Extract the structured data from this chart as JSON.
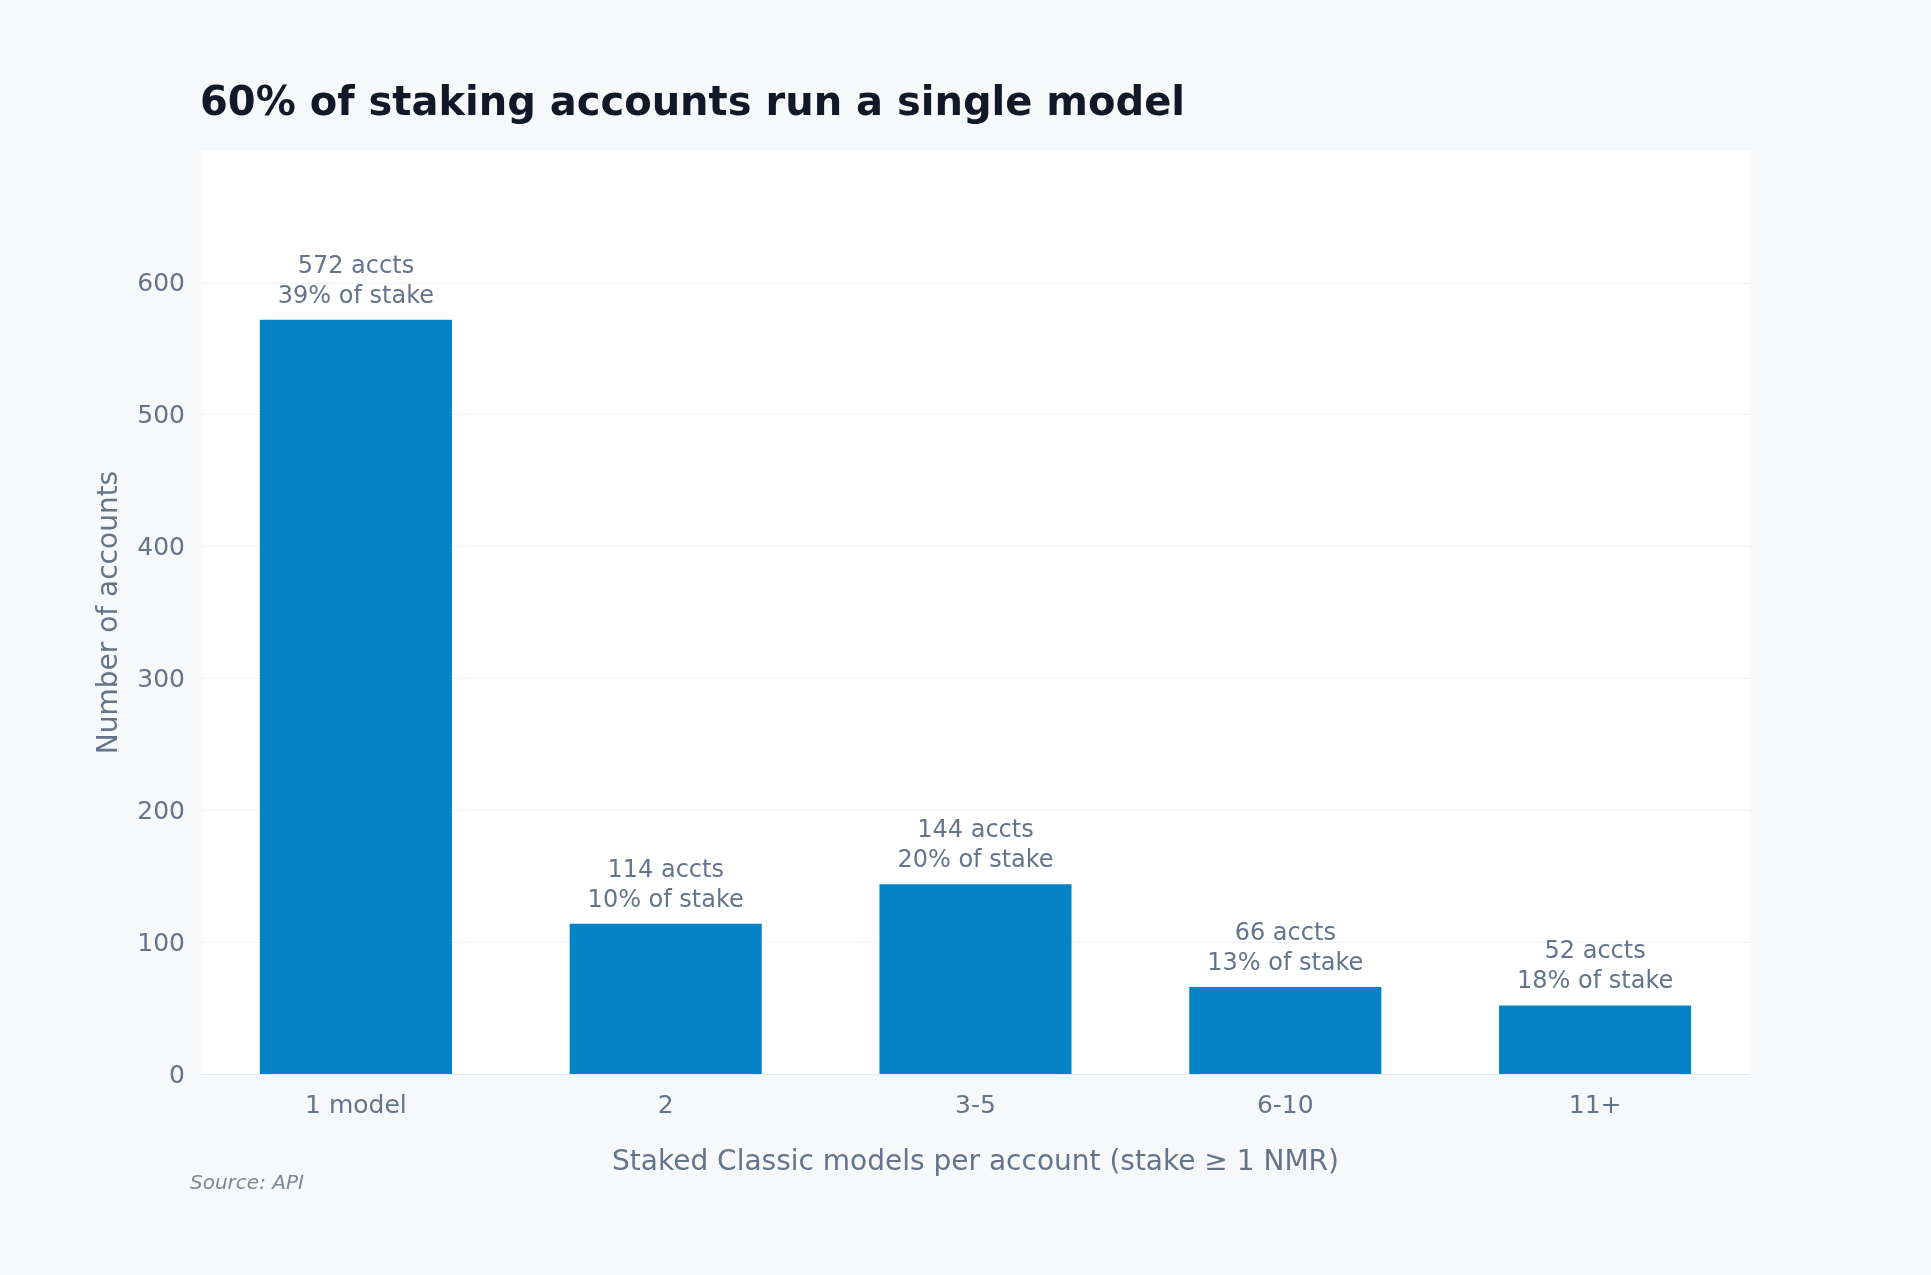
{
  "chart_data": {
    "type": "bar",
    "title": "60% of staking accounts run a single model",
    "xlabel": "Staked Classic models per account (stake ≥ 1 NMR)",
    "ylabel": "Number of accounts",
    "categories": [
      "1 model",
      "2",
      "3-5",
      "6-10",
      "11+"
    ],
    "values": [
      572,
      114,
      144,
      66,
      52
    ],
    "value_labels": [
      "572 accts\n39% of stake",
      "114 accts\n10% of stake",
      "144 accts\n20% of stake",
      "66 accts\n13% of stake",
      "52 accts\n18% of stake"
    ],
    "color": "#0483c6",
    "ylim": [
      0,
      700
    ],
    "yticks": [
      0,
      100,
      200,
      300,
      400,
      500,
      600
    ],
    "grid": "y",
    "annotations": [
      "Source: API"
    ]
  }
}
